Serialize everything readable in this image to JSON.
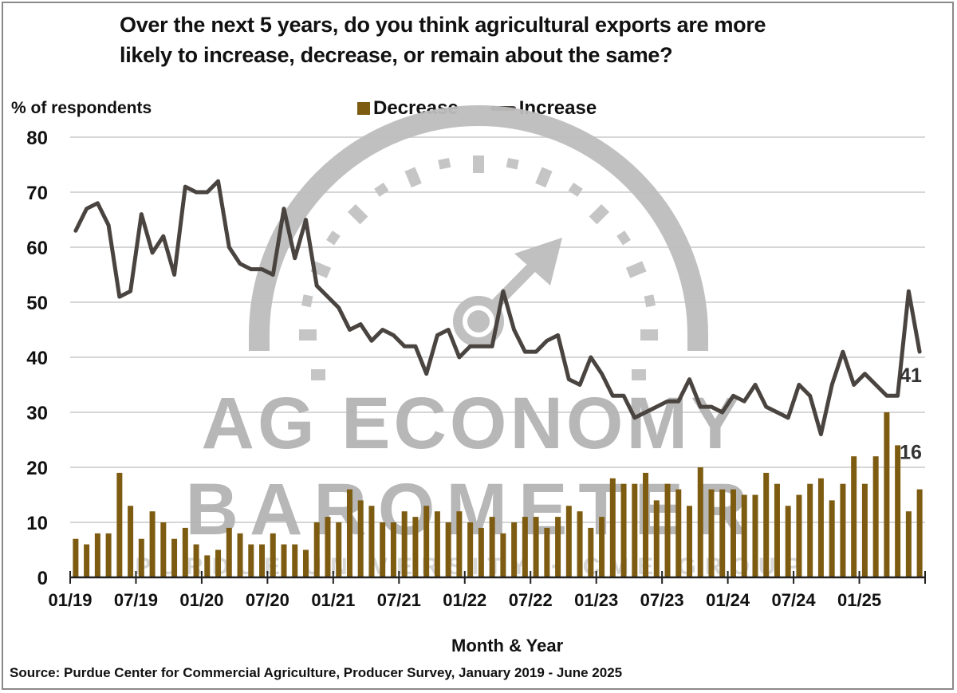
{
  "title_line1": "Over the next 5 years, do you think agricultural exports are more",
  "title_line2": "likely to increase, decrease, or remain about the same?",
  "y_axis_label": "% of respondents",
  "x_axis_label": "Month & Year",
  "source": "Source: Purdue Center for Commercial Agriculture, Producer Survey, January 2019 - June 2025",
  "legend": [
    {
      "label": "Decrease",
      "type": "bar",
      "color": "#7d5c12"
    },
    {
      "label": "Increase",
      "type": "line",
      "color": "#4a4440"
    }
  ],
  "end_labels": {
    "increase": "41",
    "decrease": "16"
  },
  "watermark": {
    "line1": "AG ECONOMY",
    "line2": "BAROMETER",
    "line3": "PURDUE UNIVERSITY · CME GROUP"
  },
  "chart_data": {
    "type": "bar+line",
    "title": "Over the next 5 years, do you think agricultural exports are more likely to increase, decrease, or remain about the same?",
    "xlabel": "Month & Year",
    "ylabel": "% of respondents",
    "ylim": [
      0,
      80
    ],
    "yticks": [
      0,
      10,
      20,
      30,
      40,
      50,
      60,
      70,
      80
    ],
    "xtick_labels": [
      "01/19",
      "07/19",
      "01/20",
      "07/20",
      "01/21",
      "07/21",
      "01/22",
      "07/22",
      "01/23",
      "07/23",
      "01/24",
      "07/24",
      "01/25"
    ],
    "grid": "horizontal",
    "legend_position": "top",
    "x_start": "01/2019",
    "x_end": "06/2025",
    "x": [
      "01/19",
      "02/19",
      "03/19",
      "04/19",
      "05/19",
      "06/19",
      "07/19",
      "08/19",
      "09/19",
      "10/19",
      "11/19",
      "12/19",
      "01/20",
      "02/20",
      "03/20",
      "04/20",
      "05/20",
      "06/20",
      "07/20",
      "08/20",
      "09/20",
      "10/20",
      "11/20",
      "12/20",
      "01/21",
      "02/21",
      "03/21",
      "04/21",
      "05/21",
      "06/21",
      "07/21",
      "08/21",
      "09/21",
      "10/21",
      "11/21",
      "12/21",
      "01/22",
      "02/22",
      "03/22",
      "04/22",
      "05/22",
      "06/22",
      "07/22",
      "08/22",
      "09/22",
      "10/22",
      "11/22",
      "12/22",
      "01/23",
      "02/23",
      "03/23",
      "04/23",
      "05/23",
      "06/23",
      "07/23",
      "08/23",
      "09/23",
      "10/23",
      "11/23",
      "12/23",
      "01/24",
      "02/24",
      "03/24",
      "04/24",
      "05/24",
      "06/24",
      "07/24",
      "08/24",
      "09/24",
      "10/24",
      "11/24",
      "12/24",
      "01/25",
      "02/25",
      "03/25",
      "04/25",
      "05/25",
      "06/25"
    ],
    "series": [
      {
        "name": "Decrease",
        "type": "bar",
        "color": "#7d5c12",
        "values": [
          7,
          6,
          8,
          8,
          19,
          13,
          7,
          12,
          10,
          7,
          9,
          6,
          4,
          5,
          9,
          8,
          6,
          6,
          8,
          6,
          6,
          5,
          10,
          11,
          10,
          16,
          14,
          13,
          10,
          10,
          12,
          11,
          13,
          12,
          10,
          12,
          10,
          9,
          11,
          8,
          10,
          11,
          11,
          9,
          11,
          13,
          12,
          9,
          11,
          18,
          17,
          17,
          19,
          14,
          17,
          16,
          13,
          20,
          16,
          16,
          16,
          15,
          15,
          19,
          17,
          13,
          15,
          17,
          18,
          14,
          17,
          22,
          17,
          22,
          30,
          24,
          12,
          16
        ]
      },
      {
        "name": "Increase",
        "type": "line",
        "color": "#4a4440",
        "values": [
          63,
          67,
          68,
          64,
          51,
          52,
          66,
          59,
          62,
          55,
          71,
          70,
          70,
          72,
          60,
          57,
          56,
          56,
          55,
          67,
          58,
          65,
          53,
          51,
          49,
          45,
          46,
          43,
          45,
          44,
          42,
          42,
          37,
          44,
          45,
          40,
          42,
          42,
          42,
          52,
          45,
          41,
          41,
          43,
          44,
          36,
          35,
          40,
          37,
          33,
          33,
          29,
          30,
          31,
          32,
          32,
          36,
          31,
          31,
          30,
          33,
          32,
          35,
          31,
          30,
          29,
          35,
          33,
          26,
          35,
          41,
          35,
          37,
          35,
          33,
          33,
          52,
          41
        ]
      }
    ],
    "annotations": [
      {
        "series": "Increase",
        "x": "06/25",
        "text": "41"
      },
      {
        "series": "Decrease",
        "x": "06/25",
        "text": "16"
      }
    ]
  }
}
